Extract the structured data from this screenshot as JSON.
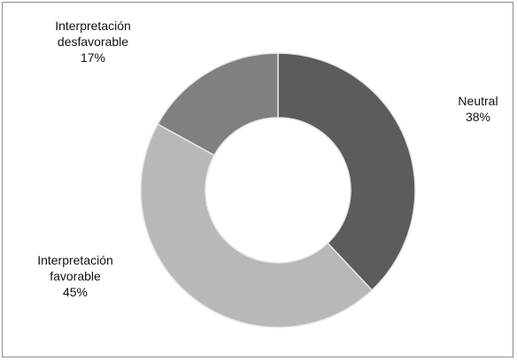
{
  "chart_data": {
    "type": "donut",
    "categories": [
      "Neutral",
      "Interpretación favorable",
      "Interpretación desfavorable"
    ],
    "values": [
      38,
      45,
      17
    ],
    "value_labels": [
      "38%",
      "45%",
      "17%"
    ],
    "colors": [
      "#5c5c5c",
      "#b8b8b8",
      "#808080"
    ]
  }
}
